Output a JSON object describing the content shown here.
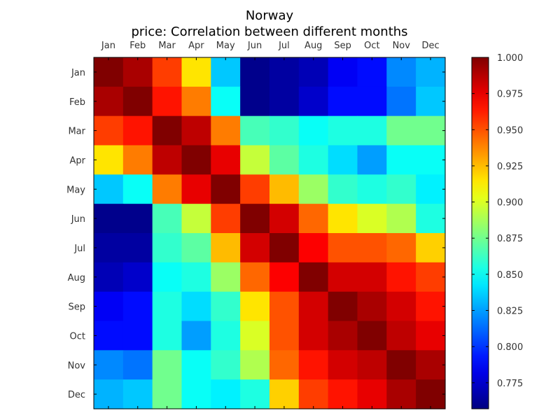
{
  "chart_data": {
    "type": "heatmap",
    "title": "Norway",
    "subtitle": "price: Correlation between different months",
    "xlabel": "",
    "ylabel": "",
    "x_tick_labels": [
      "Jan",
      "Feb",
      "Mar",
      "Apr",
      "May",
      "Jun",
      "Jul",
      "Aug",
      "Sep",
      "Oct",
      "Nov",
      "Dec"
    ],
    "y_tick_labels": [
      "Jan",
      "Feb",
      "Mar",
      "Apr",
      "May",
      "Jun",
      "Jul",
      "Aug",
      "Sep",
      "Oct",
      "Nov",
      "Dec"
    ],
    "colormap": "jet",
    "vmin": 0.757,
    "vmax": 1.0,
    "colorbar_ticks": [
      1.0,
      0.975,
      0.95,
      0.925,
      0.9,
      0.875,
      0.85,
      0.825,
      0.8,
      0.775
    ],
    "colorbar_tick_labels": [
      "1.000",
      "0.975",
      "0.950",
      "0.925",
      "0.900",
      "0.875",
      "0.850",
      "0.825",
      "0.800",
      "0.775"
    ],
    "matrix": [
      [
        1.0,
        0.99,
        0.955,
        0.915,
        0.835,
        0.76,
        0.765,
        0.77,
        0.785,
        0.79,
        0.82,
        0.83
      ],
      [
        0.99,
        1.0,
        0.965,
        0.94,
        0.85,
        0.76,
        0.765,
        0.775,
        0.79,
        0.79,
        0.815,
        0.835
      ],
      [
        0.955,
        0.965,
        1.0,
        0.985,
        0.94,
        0.865,
        0.86,
        0.85,
        0.855,
        0.855,
        0.875,
        0.875
      ],
      [
        0.915,
        0.94,
        0.985,
        1.0,
        0.975,
        0.895,
        0.87,
        0.855,
        0.84,
        0.825,
        0.85,
        0.85
      ],
      [
        0.835,
        0.85,
        0.94,
        0.975,
        1.0,
        0.955,
        0.925,
        0.885,
        0.86,
        0.855,
        0.86,
        0.845
      ],
      [
        0.76,
        0.76,
        0.865,
        0.895,
        0.955,
        1.0,
        0.98,
        0.945,
        0.915,
        0.9,
        0.89,
        0.855
      ],
      [
        0.765,
        0.765,
        0.86,
        0.87,
        0.925,
        0.98,
        1.0,
        0.97,
        0.95,
        0.95,
        0.945,
        0.92
      ],
      [
        0.77,
        0.775,
        0.85,
        0.855,
        0.885,
        0.945,
        0.97,
        1.0,
        0.98,
        0.98,
        0.965,
        0.955
      ],
      [
        0.785,
        0.79,
        0.855,
        0.84,
        0.86,
        0.915,
        0.95,
        0.98,
        1.0,
        0.99,
        0.98,
        0.965
      ],
      [
        0.79,
        0.79,
        0.855,
        0.825,
        0.855,
        0.9,
        0.95,
        0.98,
        0.99,
        1.0,
        0.985,
        0.975
      ],
      [
        0.82,
        0.815,
        0.875,
        0.85,
        0.86,
        0.89,
        0.945,
        0.965,
        0.98,
        0.985,
        1.0,
        0.99
      ],
      [
        0.83,
        0.835,
        0.875,
        0.85,
        0.845,
        0.855,
        0.92,
        0.955,
        0.965,
        0.975,
        0.99,
        1.0
      ]
    ]
  }
}
